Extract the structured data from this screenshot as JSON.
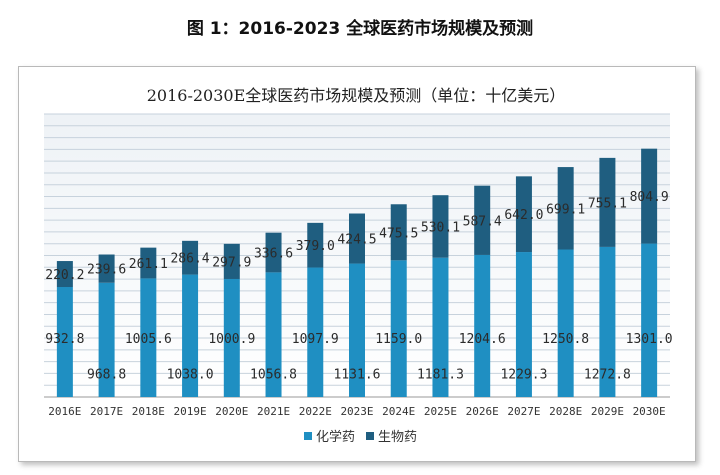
{
  "figure_title": "图 1：2016-2023 全球医药市场规模及预测",
  "chart_data": {
    "type": "bar",
    "stacked": true,
    "title": "2016-2030E全球医药市场规模及预测（单位：十亿美元）",
    "categories": [
      "2016E",
      "2017E",
      "2018E",
      "2019E",
      "2020E",
      "2021E",
      "2022E",
      "2023E",
      "2024E",
      "2025E",
      "2026E",
      "2027E",
      "2028E",
      "2029E",
      "2030E"
    ],
    "series": [
      {
        "name": "化学药",
        "color": "#1f8fc2",
        "values": [
          932.8,
          968.8,
          1005.6,
          1038.0,
          1000.9,
          1056.8,
          1097.9,
          1131.6,
          1159.0,
          1181.3,
          1204.6,
          1229.3,
          1250.8,
          1272.8,
          1301.0
        ],
        "labels": [
          "932.8",
          "968.8",
          "1005.6",
          "1038.0",
          "1000.9",
          "1056.8",
          "1097.9",
          "1131.6",
          "1159.0",
          "1181.3",
          "1204.6",
          "1229.3",
          "1250.8",
          "1272.8",
          "1301.0"
        ]
      },
      {
        "name": "生物药",
        "color": "#1f5e80",
        "values": [
          220.2,
          239.6,
          261.1,
          286.4,
          297.9,
          336.6,
          379.0,
          424.5,
          475.5,
          530.1,
          587.4,
          642.0,
          699.1,
          755.1,
          804.9
        ],
        "labels": [
          "220.2",
          "239.6",
          "261.1",
          "286.4",
          "297.9",
          "336.6",
          "379.0",
          "424.5",
          "475.5",
          "530.1",
          "587.4",
          "642.0",
          "699.1",
          "755.1",
          "804.9"
        ]
      }
    ],
    "ylim": [
      0,
      2400
    ],
    "grid": true,
    "legend_position": "bottom-center"
  }
}
